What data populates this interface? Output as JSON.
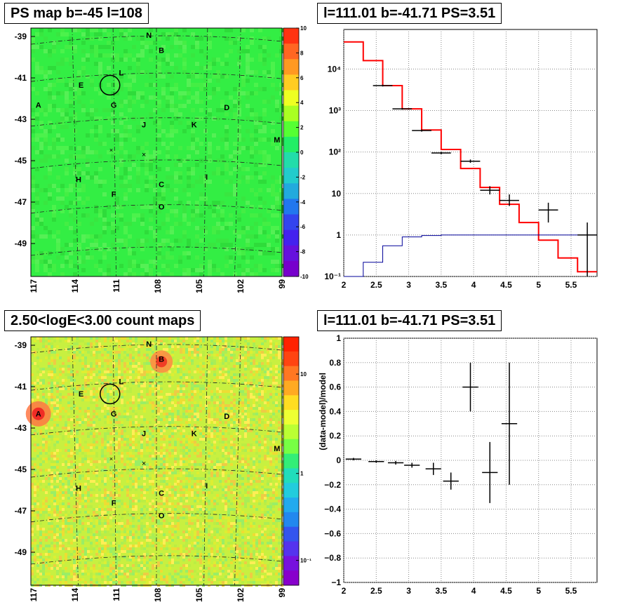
{
  "panels": {
    "map_top": {
      "title": "PS map b=-45 l=108",
      "y_ticks": [
        "-39",
        "-41",
        "-43",
        "-45",
        "-47",
        "-49"
      ],
      "x_ticks": [
        "117",
        "114",
        "111",
        "108",
        "105",
        "102",
        "99"
      ],
      "colorbar_ticks": [
        "10",
        "8",
        "6",
        "4",
        "2",
        "0",
        "-2",
        "-4",
        "-6",
        "-8",
        "-10"
      ],
      "colors": {
        "background": "#33ee44"
      }
    },
    "spectrum": {
      "title": "l=111.01 b=-41.71 PS=3.51"
    },
    "map_bottom": {
      "title": "2.50<logE<3.00 count maps",
      "y_ticks": [
        "-39",
        "-41",
        "-43",
        "-45",
        "-47",
        "-49"
      ],
      "x_ticks": [
        "117",
        "114",
        "111",
        "108",
        "105",
        "102",
        "99"
      ],
      "colorbar_ticks": [
        "10",
        "1",
        "10⁻¹"
      ],
      "colors": {
        "background": "#c8f040"
      }
    },
    "residual": {
      "title": "l=111.01 b=-41.71 PS=3.51"
    }
  },
  "sources": [
    "N",
    "B",
    "L",
    "E",
    "A",
    "G",
    "D",
    "J",
    "K",
    "M",
    "H",
    "C",
    "I",
    "F",
    "O"
  ],
  "chart_data": [
    {
      "type": "line",
      "panel": "spectrum",
      "title": "l=111.01 b=-41.71 PS=3.51",
      "xlim": [
        2,
        5.9
      ],
      "ylim": [
        0.1,
        90000
      ],
      "log_y": true,
      "grid": true,
      "x_ticks": [
        "2",
        "2.5",
        "3",
        "3.5",
        "4",
        "4.5",
        "5",
        "5.5"
      ],
      "y_ticks": [
        "10⁻¹",
        "1",
        "10",
        "10²",
        "10³",
        "10⁴"
      ],
      "series": [
        {
          "color": "#ff0000",
          "step_edges": [
            2,
            2.3,
            2.6,
            2.9,
            3.2,
            3.5,
            3.8,
            4.1,
            4.4,
            4.7,
            5.0,
            5.3,
            5.6,
            5.9
          ],
          "values": [
            45000,
            16000,
            4000,
            1100,
            340,
            115,
            40,
            14,
            5.5,
            2.0,
            0.75,
            0.28,
            0.13
          ]
        },
        {
          "color": "#000099",
          "step_edges": [
            2,
            2.3,
            2.6,
            2.9,
            3.2,
            3.5,
            3.8,
            4.1,
            4.4,
            4.7,
            5.0,
            5.3,
            5.6,
            5.9
          ],
          "values": [
            0.05,
            0.22,
            0.55,
            0.9,
            0.97,
            1.0,
            1.0,
            1.0,
            1.0,
            1.0,
            1.0,
            1.0,
            1.0
          ]
        },
        {
          "color": "#000000",
          "points": [
            {
              "x": 2.6,
              "y": 4000,
              "xerr": 0.15,
              "ylo": 3800,
              "yhi": 4200
            },
            {
              "x": 2.9,
              "y": 1100,
              "xerr": 0.15,
              "ylo": 1050,
              "yhi": 1150
            },
            {
              "x": 3.2,
              "y": 330,
              "xerr": 0.15,
              "ylo": 310,
              "yhi": 350
            },
            {
              "x": 3.5,
              "y": 95,
              "xerr": 0.15,
              "ylo": 88,
              "yhi": 102
            },
            {
              "x": 3.95,
              "y": 60,
              "xerr": 0.15,
              "ylo": 55,
              "yhi": 66
            },
            {
              "x": 4.25,
              "y": 12,
              "xerr": 0.15,
              "ylo": 9.5,
              "yhi": 15
            },
            {
              "x": 4.55,
              "y": 6.8,
              "xerr": 0.15,
              "ylo": 5.0,
              "yhi": 9.5
            },
            {
              "x": 5.15,
              "y": 4.0,
              "xerr": 0.15,
              "ylo": 2.0,
              "yhi": 6.0
            },
            {
              "x": 5.75,
              "y": 1.0,
              "xerr": 0.15,
              "ylo": 0.1,
              "yhi": 2.0
            }
          ]
        }
      ]
    },
    {
      "type": "scatter",
      "panel": "residual",
      "title": "l=111.01 b=-41.71 PS=3.51",
      "ylabel": "(data-model)/model",
      "xlim": [
        2,
        5.9
      ],
      "ylim": [
        -1,
        1
      ],
      "grid": true,
      "x_ticks": [
        "2",
        "2.5",
        "3",
        "3.5",
        "4",
        "4.5",
        "5",
        "5.5"
      ],
      "y_ticks": [
        "1",
        "0.8",
        "0.6",
        "0.4",
        "0.2",
        "0",
        "−0.2",
        "−0.4",
        "−0.6",
        "−0.8",
        "−1"
      ],
      "points": [
        {
          "x": 2.15,
          "y": 0.01,
          "xerr": 0.12,
          "err": 0.01
        },
        {
          "x": 2.5,
          "y": -0.01,
          "xerr": 0.12,
          "err": 0.01
        },
        {
          "x": 2.8,
          "y": -0.02,
          "xerr": 0.12,
          "err": 0.015
        },
        {
          "x": 3.05,
          "y": -0.04,
          "xerr": 0.12,
          "err": 0.02
        },
        {
          "x": 3.38,
          "y": -0.07,
          "xerr": 0.12,
          "err": 0.05
        },
        {
          "x": 3.65,
          "y": -0.17,
          "xerr": 0.12,
          "err": 0.07
        },
        {
          "x": 3.95,
          "y": 0.6,
          "xerr": 0.12,
          "err": 0.2
        },
        {
          "x": 4.25,
          "y": -0.1,
          "xerr": 0.12,
          "err": 0.25
        },
        {
          "x": 4.55,
          "y": 0.3,
          "xerr": 0.12,
          "err": 0.5
        }
      ]
    }
  ]
}
